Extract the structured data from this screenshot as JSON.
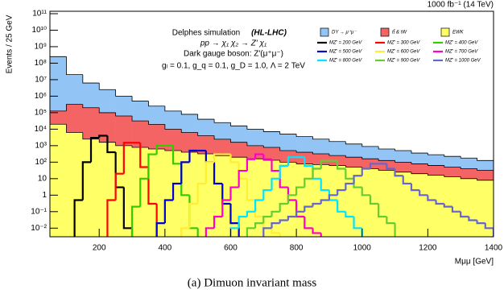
{
  "chart_data": {
    "type": "histogram",
    "x_label": "Mμμ [GeV]",
    "y_label": "Events / 25 GeV",
    "luminosity_label": "1000 fb⁻¹ (14 TeV)",
    "caption": "(a) Dimuon invariant mass",
    "annotations": [
      "Delphes simulation",
      "(HL-LHC)",
      "pp → χ₁ χ₂ → Z′ χ₁",
      "Dark gauge boson: Z′(μ⁺μ⁻)",
      "gₗ = 0.1, g_q = 0.1, g_D = 1.0, Λ = 2 TeV"
    ],
    "log_y": true,
    "xlim": [
      50,
      1400
    ],
    "ylim": [
      0.003,
      140000000000
    ],
    "xticks": [
      200,
      400,
      600,
      800,
      1000,
      1200,
      1400
    ],
    "yticks": [
      {
        "value": 0.01,
        "label": "10⁻²"
      },
      {
        "value": 0.1,
        "label": "10⁻¹"
      },
      1,
      10,
      {
        "value": 100,
        "label": "10²"
      },
      {
        "value": 1000,
        "label": "10³"
      },
      {
        "value": 10000,
        "label": "10⁴"
      },
      {
        "value": 100000,
        "label": "10⁵"
      },
      {
        "value": 1000000,
        "label": "10⁶"
      },
      {
        "value": 10000000,
        "label": "10⁷"
      },
      {
        "value": 100000000,
        "label": "10⁸"
      },
      {
        "value": 1000000000,
        "label": "10⁹"
      },
      {
        "value": 10000000000,
        "label": "10¹⁰"
      },
      {
        "value": 100000000000,
        "label": "10¹¹"
      }
    ],
    "series": [
      {
        "name": "DY → μ⁺μ⁻",
        "color": "#92c5f5",
        "style": "filled",
        "bins": [
          50,
          100,
          150,
          200,
          250,
          300,
          350,
          400,
          450,
          500,
          550,
          600,
          650,
          700,
          750,
          800,
          850,
          900,
          950,
          1000,
          1050,
          1100,
          1150,
          1200,
          1250,
          1300,
          1350,
          1400
        ],
        "values": [
          250000000,
          20000000,
          6100000,
          2400000,
          940000,
          470000,
          230000,
          116000,
          73000,
          36000,
          22500,
          14200,
          9000,
          6300,
          4500,
          3150,
          2180,
          1530,
          1060,
          730,
          500,
          400,
          276,
          219,
          174,
          138,
          94
        ]
      },
      {
        "name": "tt̄ & tW",
        "color": "#f56464",
        "style": "filled",
        "bins": [
          50,
          100,
          150,
          200,
          250,
          300,
          350,
          400,
          450,
          500,
          550,
          600,
          650,
          700,
          750,
          800,
          850,
          900,
          950,
          1000,
          1050,
          1100,
          1150,
          1200,
          1250,
          1300,
          1350,
          1400
        ],
        "values": [
          106000,
          310000,
          197000,
          98000,
          62000,
          31000,
          19000,
          9500,
          5900,
          3700,
          2200,
          1400,
          840,
          660,
          400,
          320,
          250,
          190,
          150,
          120,
          94,
          75,
          59,
          47,
          37,
          30,
          24
        ]
      },
      {
        "name": "EWK",
        "color": "#ffff66",
        "style": "filled",
        "bins": [
          50,
          100,
          150,
          200,
          250,
          300,
          350,
          400,
          450,
          500,
          550,
          600,
          650,
          700,
          750,
          800,
          850,
          900,
          950,
          1000,
          1050,
          1100,
          1150,
          1200,
          1250,
          1300,
          1350,
          1400
        ],
        "values": [
          20000,
          6300,
          2500,
          1600,
          1000,
          790,
          630,
          500,
          400,
          320,
          250,
          200,
          160,
          130,
          100,
          79,
          71,
          63,
          50,
          40,
          32,
          25,
          20,
          16,
          13,
          10,
          8
        ]
      },
      {
        "name": "MZ′ = 200 GeV",
        "color": "#000000",
        "style": "step",
        "bins": [
          125,
          150,
          175,
          200,
          225,
          250,
          275,
          300
        ],
        "values": [
          0.5,
          100,
          3000,
          4000,
          400,
          3,
          0.01
        ]
      },
      {
        "name": "MZ′ = 300 GeV",
        "color": "#ff0000",
        "style": "step",
        "bins": [
          225,
          250,
          275,
          300,
          325,
          350,
          375
        ],
        "values": [
          0.5,
          20,
          1500,
          1500,
          50,
          0.3
        ]
      },
      {
        "name": "MZ′ = 400 GeV",
        "color": "#33cc00",
        "style": "step",
        "bins": [
          300,
          325,
          350,
          375,
          400,
          425,
          450,
          475,
          500
        ],
        "values": [
          0.2,
          10,
          300,
          1000,
          1000,
          80,
          1,
          0.01
        ]
      },
      {
        "name": "MZ′ = 500 GeV",
        "color": "#0000cc",
        "style": "step",
        "bins": [
          375,
          400,
          425,
          450,
          475,
          500,
          525,
          550,
          575,
          600,
          625
        ],
        "values": [
          0.02,
          0.5,
          5,
          100,
          500,
          500,
          100,
          5,
          0.3,
          0.02
        ]
      },
      {
        "name": "MZ′ = 600 GeV",
        "color": "#ffee33",
        "style": "step",
        "bins": [
          450,
          475,
          500,
          525,
          550,
          575,
          600,
          625,
          650,
          675,
          700,
          725,
          750
        ],
        "values": [
          0.01,
          0.3,
          5,
          100,
          300,
          300,
          100,
          10,
          0.5,
          0.05,
          0.01,
          0.005
        ]
      },
      {
        "name": "MZ′ = 700 GeV",
        "color": "#ff00cc",
        "style": "step",
        "bins": [
          525,
          550,
          575,
          600,
          625,
          650,
          675,
          700,
          725,
          750,
          775,
          800,
          825,
          850,
          875
        ],
        "values": [
          0.01,
          0.05,
          0.5,
          3,
          30,
          150,
          300,
          150,
          30,
          3,
          0.5,
          0.05,
          0.01,
          0.005
        ]
      },
      {
        "name": "MZ′ = 800 GeV",
        "color": "#00e5ff",
        "style": "step",
        "bins": [
          600,
          625,
          650,
          675,
          700,
          725,
          750,
          775,
          800,
          825,
          850,
          875,
          900,
          925,
          950,
          975,
          1000
        ],
        "values": [
          0.01,
          0.05,
          0.1,
          0.5,
          2,
          10,
          60,
          200,
          200,
          60,
          10,
          2,
          0.5,
          0.1,
          0.05,
          0.01
        ]
      },
      {
        "name": "MZ′ = 900 GeV",
        "color": "#66cc33",
        "style": "step",
        "bins": [
          650,
          675,
          700,
          725,
          750,
          775,
          800,
          825,
          850,
          875,
          900,
          925,
          950,
          975,
          1000,
          1025,
          1050,
          1075,
          1100
        ],
        "values": [
          0.01,
          0.02,
          0.05,
          0.1,
          0.3,
          1,
          3,
          10,
          40,
          120,
          120,
          40,
          10,
          3,
          1,
          0.3,
          0.05,
          0.02
        ]
      },
      {
        "name": "MZ′ = 1000 GeV",
        "color": "#6666cc",
        "style": "step",
        "bins": [
          700,
          725,
          750,
          775,
          800,
          825,
          850,
          875,
          900,
          925,
          950,
          975,
          1000,
          1025,
          1050,
          1075,
          1100,
          1125,
          1150,
          1175,
          1200,
          1225,
          1250,
          1275,
          1300,
          1325,
          1350,
          1375,
          1400
        ],
        "values": [
          0.01,
          0.02,
          0.03,
          0.05,
          0.1,
          0.2,
          0.3,
          0.5,
          1,
          2,
          5,
          15,
          40,
          80,
          80,
          40,
          15,
          5,
          2,
          1,
          0.5,
          0.3,
          0.2,
          0.1,
          0.05,
          0.03,
          0.02,
          0.01
        ]
      }
    ]
  }
}
